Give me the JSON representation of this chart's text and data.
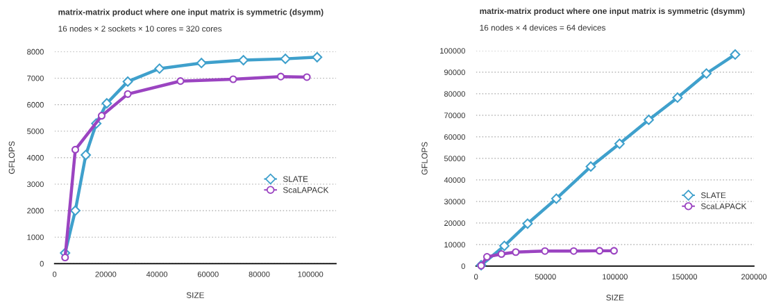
{
  "chart_data": [
    {
      "type": "line",
      "title": "matrix-matrix product where one input matrix is symmetric (dsymm)",
      "subtitle": "16 nodes × 2 sockets × 10 cores = 320 cores",
      "xlabel": "SIZE",
      "ylabel": "GFLOPS",
      "xlim": [
        0,
        110000
      ],
      "xticks": [
        0,
        20000,
        40000,
        60000,
        80000,
        100000
      ],
      "ylim": [
        0,
        8000
      ],
      "yticks": [
        0,
        1000,
        2000,
        3000,
        4000,
        5000,
        6000,
        7000,
        8000
      ],
      "grid": "y",
      "legend": "right",
      "series": [
        {
          "name": "SLATE",
          "color": "#3fa0cc",
          "marker": "diamond",
          "x": [
            4100,
            8100,
            12200,
            16300,
            20400,
            28600,
            41000,
            57400,
            73800,
            90200,
            102600
          ],
          "values": [
            400,
            2000,
            4100,
            5290,
            6050,
            6870,
            7360,
            7570,
            7680,
            7730,
            7790
          ]
        },
        {
          "name": "ScaLAPACK",
          "color": "#9b44c1",
          "marker": "circle",
          "x": [
            4100,
            8100,
            18400,
            28600,
            49200,
            69800,
            88400,
            98600
          ],
          "values": [
            230,
            4300,
            5580,
            6400,
            6890,
            6960,
            7060,
            7040
          ]
        }
      ]
    },
    {
      "type": "line",
      "title": "matrix-matrix product where one input matrix is symmetric (dsymm)",
      "subtitle": "16 nodes × 4 devices = 64 devices",
      "xlabel": "SIZE",
      "ylabel": "GFLOPS",
      "xlim": [
        0,
        200000
      ],
      "xticks": [
        0,
        50000,
        100000,
        150000,
        200000
      ],
      "ylim": [
        0,
        100000
      ],
      "yticks": [
        0,
        10000,
        20000,
        30000,
        40000,
        50000,
        60000,
        70000,
        80000,
        90000,
        100000
      ],
      "grid": "y",
      "legend": "right",
      "series": [
        {
          "name": "SLATE",
          "color": "#3fa0cc",
          "marker": "diamond",
          "x": [
            3700,
            20400,
            37100,
            57800,
            82600,
            103300,
            124300,
            145000,
            165800,
            186500
          ],
          "values": [
            400,
            9400,
            19700,
            31300,
            46200,
            56800,
            67900,
            78200,
            89400,
            98200
          ]
        },
        {
          "name": "ScaLAPACK",
          "color": "#9b44c1",
          "marker": "circle",
          "x": [
            3700,
            7900,
            18300,
            28600,
            49600,
            70300,
            88900,
            99300
          ],
          "values": [
            200,
            4300,
            5600,
            6500,
            7000,
            7000,
            7100,
            7100
          ]
        }
      ]
    }
  ]
}
